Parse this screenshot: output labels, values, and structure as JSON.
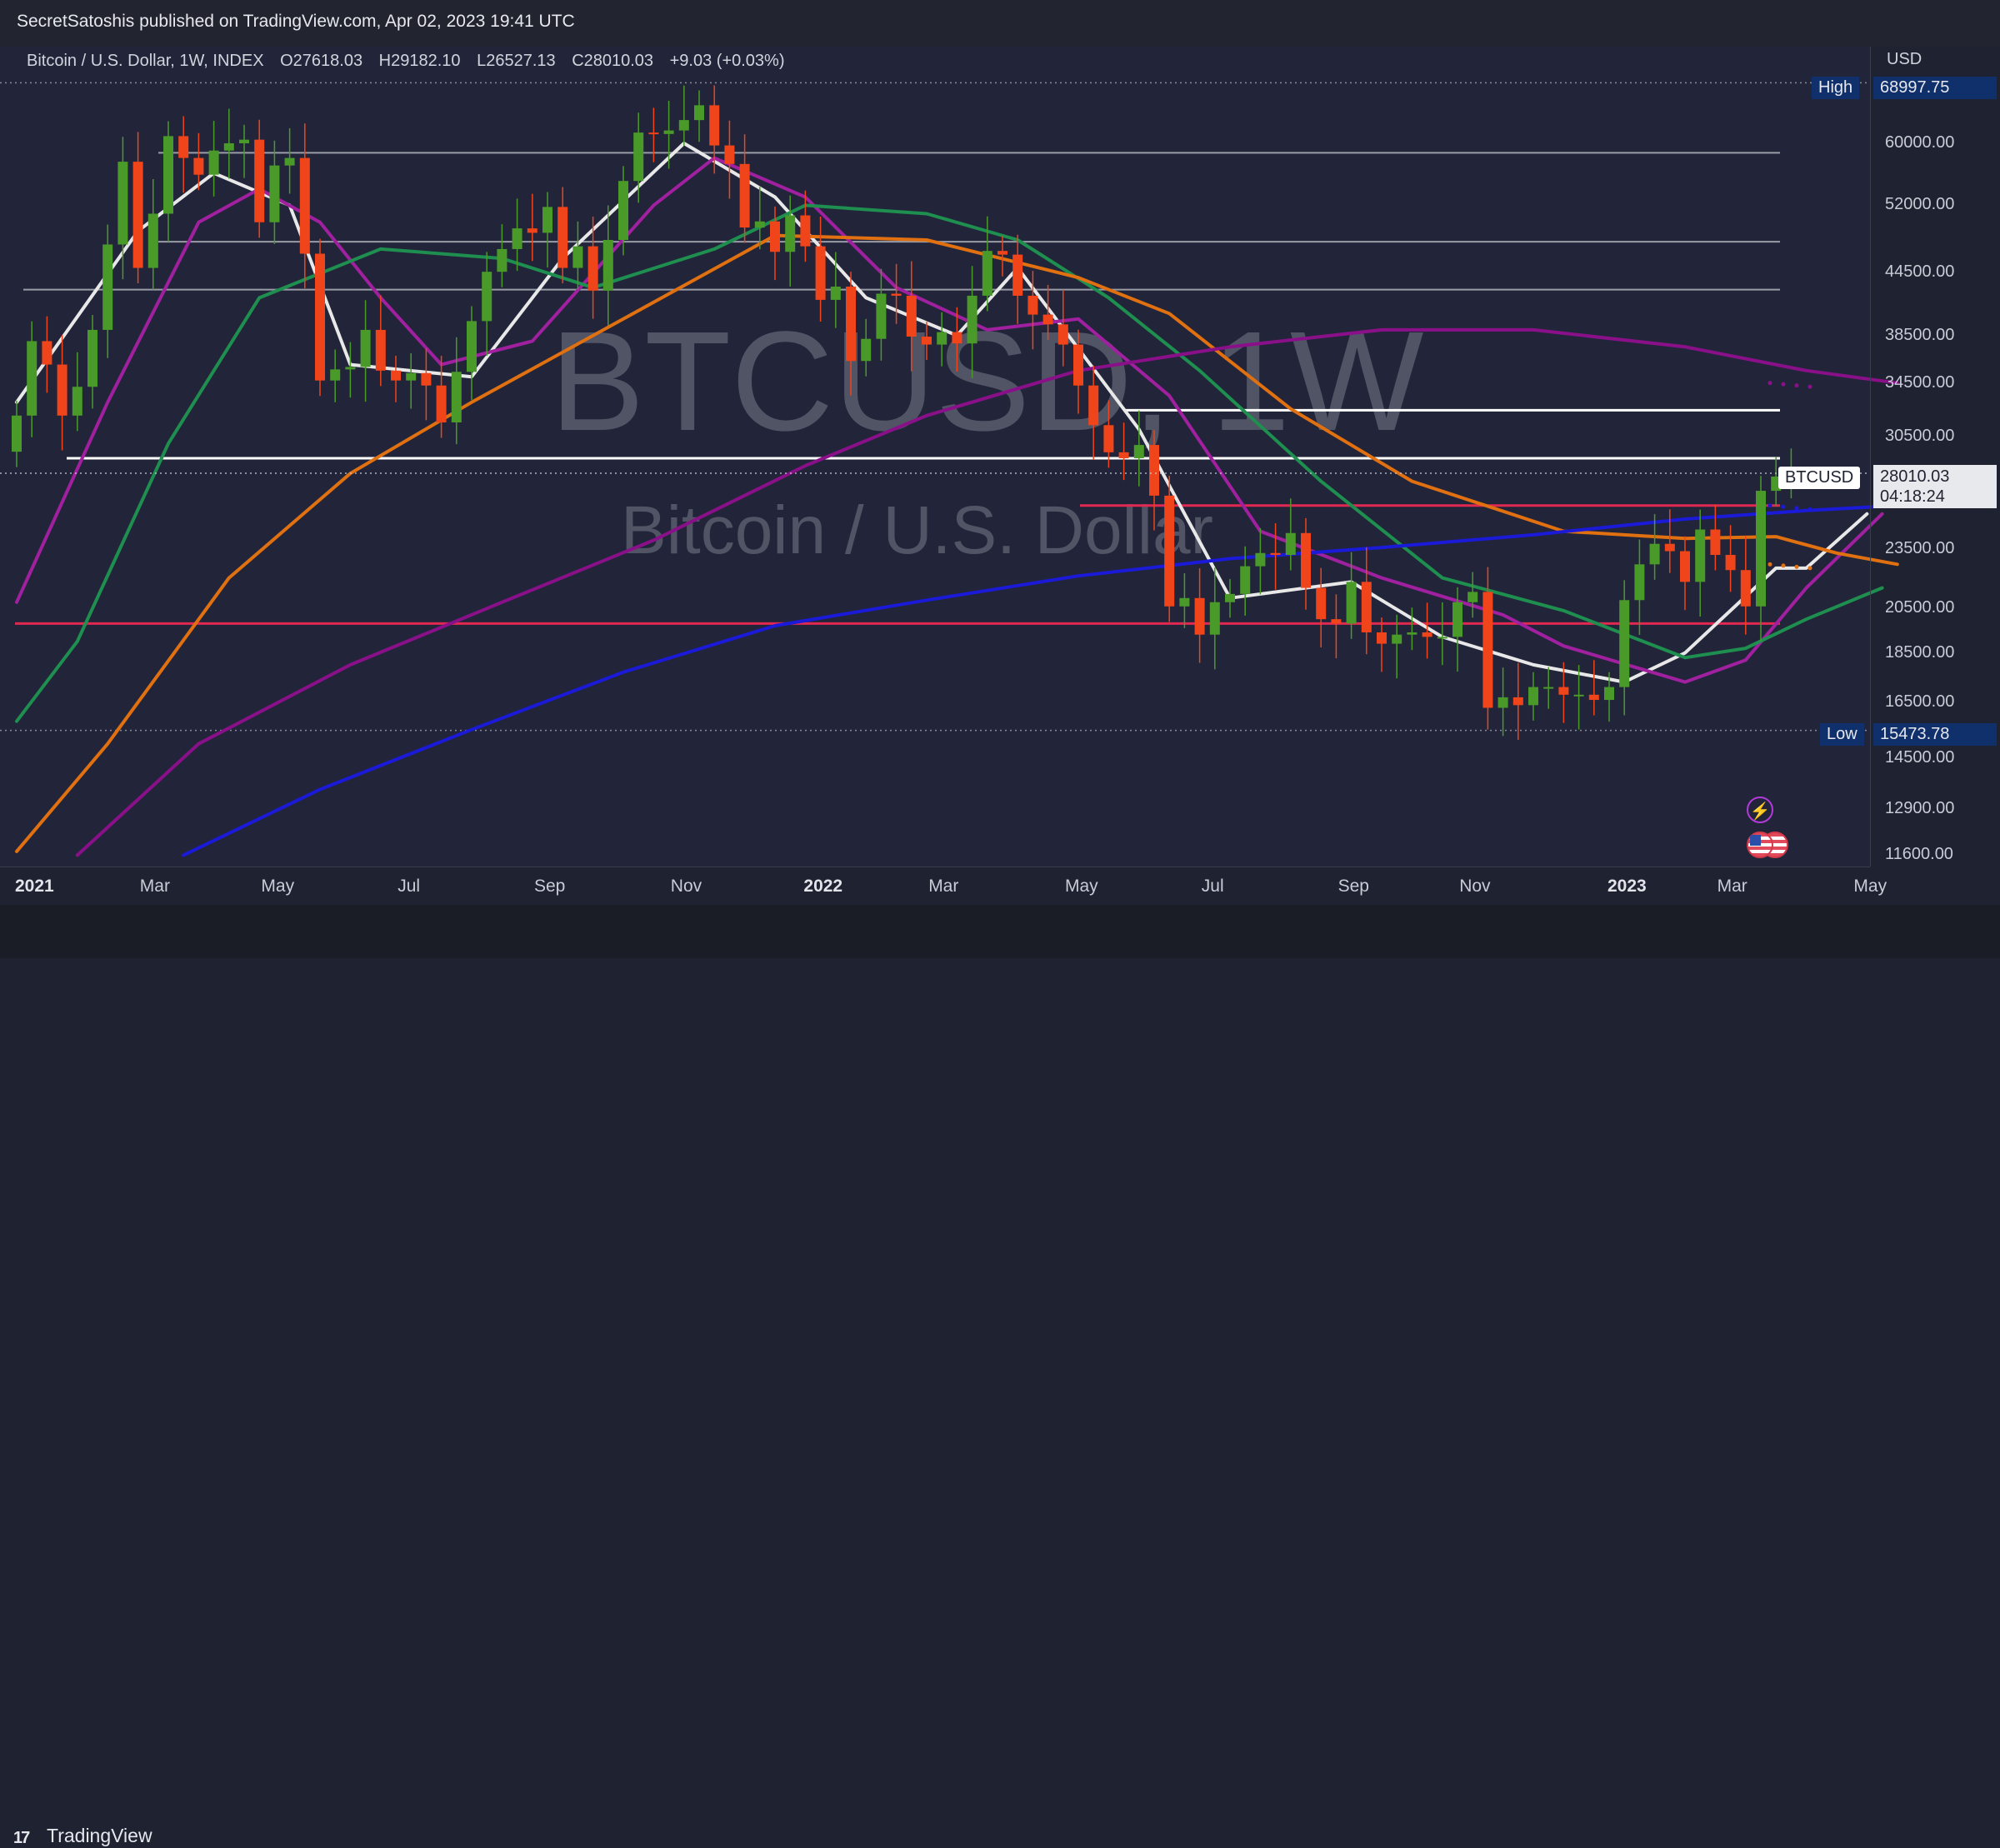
{
  "header": {
    "published": "SecretSatoshis published on TradingView.com, Apr 02, 2023 19:41 UTC"
  },
  "legend": {
    "symbol": "Bitcoin / U.S. Dollar, 1W, INDEX",
    "open": "O27618.03",
    "high": "H29182.10",
    "low": "L26527.13",
    "close": "C28010.03",
    "change": "+9.03 (+0.03%)"
  },
  "watermark": {
    "main": "BTCUSD, 1W",
    "sub": "Bitcoin / U.S. Dollar"
  },
  "price_axis": {
    "currency": "USD",
    "ticks": [
      "60000.00",
      "52000.00",
      "44500.00",
      "38500.00",
      "34500.00",
      "30500.00",
      "23500.00",
      "20500.00",
      "18500.00",
      "16500.00",
      "14500.00",
      "12900.00",
      "11600.00"
    ]
  },
  "time_axis": {
    "ticks": [
      {
        "label": "2021",
        "year": true
      },
      {
        "label": "Mar",
        "year": false
      },
      {
        "label": "May",
        "year": false
      },
      {
        "label": "Jul",
        "year": false
      },
      {
        "label": "Sep",
        "year": false
      },
      {
        "label": "Nov",
        "year": false
      },
      {
        "label": "2022",
        "year": true
      },
      {
        "label": "Mar",
        "year": false
      },
      {
        "label": "May",
        "year": false
      },
      {
        "label": "Jul",
        "year": false
      },
      {
        "label": "Sep",
        "year": false
      },
      {
        "label": "Nov",
        "year": false
      },
      {
        "label": "2023",
        "year": true
      },
      {
        "label": "Mar",
        "year": false
      },
      {
        "label": "May",
        "year": false
      }
    ]
  },
  "markers": {
    "high_label": "High",
    "high_value": "68997.75",
    "low_label": "Low",
    "low_value": "15473.78",
    "symbol_label": "BTCUSD",
    "last_price": "28010.03",
    "countdown": "04:18:24"
  },
  "footer": {
    "brand": "TradingView"
  },
  "colors": {
    "up": "#4a9a2a",
    "down": "#f0441a",
    "ma_fast": "#e8e8e8",
    "ma_purple": "#a020a0",
    "ma_green": "#1e8f4e",
    "ma_orange": "#e07010",
    "ma_magenta": "#8a108a",
    "ma_blue": "#1a1ad8",
    "resistance": "#ffffff",
    "support": "#e02850",
    "level": "#9a9ca6"
  },
  "chart_data": {
    "type": "candlestick",
    "title": "Bitcoin / U.S. Dollar, 1W, INDEX",
    "ylabel": "USD",
    "yscale": "log",
    "ylim": [
      11300,
      73000
    ],
    "x_range": [
      "2020-12-28",
      "2023-05-08"
    ],
    "high": 68997.75,
    "low": 15473.78,
    "last": 28010.03,
    "horizontal_levels": [
      {
        "price": 58700,
        "color": "level"
      },
      {
        "price": 47800,
        "color": "level"
      },
      {
        "price": 42800,
        "color": "level"
      },
      {
        "price": 32400,
        "color": "resistance"
      },
      {
        "price": 29000,
        "color": "resistance"
      },
      {
        "price": 26000,
        "color": "support"
      },
      {
        "price": 19800,
        "color": "support"
      }
    ],
    "weekly_closes": [
      {
        "date": "2020-12-28",
        "close": 32000
      },
      {
        "date": "2021-01-04",
        "close": 38000
      },
      {
        "date": "2021-01-11",
        "close": 36000
      },
      {
        "date": "2021-01-18",
        "close": 32000
      },
      {
        "date": "2021-01-25",
        "close": 34200
      },
      {
        "date": "2021-02-01",
        "close": 39000
      },
      {
        "date": "2021-02-08",
        "close": 47500
      },
      {
        "date": "2021-02-15",
        "close": 57500
      },
      {
        "date": "2021-02-22",
        "close": 45000
      },
      {
        "date": "2021-03-01",
        "close": 51000
      },
      {
        "date": "2021-03-08",
        "close": 61000
      },
      {
        "date": "2021-03-15",
        "close": 58000
      },
      {
        "date": "2021-03-22",
        "close": 55800
      },
      {
        "date": "2021-03-29",
        "close": 59000
      },
      {
        "date": "2021-04-05",
        "close": 60000
      },
      {
        "date": "2021-04-12",
        "close": 60500
      },
      {
        "date": "2021-04-19",
        "close": 50000
      },
      {
        "date": "2021-04-26",
        "close": 57000
      },
      {
        "date": "2021-05-03",
        "close": 58000
      },
      {
        "date": "2021-05-10",
        "close": 46500
      },
      {
        "date": "2021-05-17",
        "close": 34700
      },
      {
        "date": "2021-05-24",
        "close": 35600
      },
      {
        "date": "2021-05-31",
        "close": 35800
      },
      {
        "date": "2021-06-07",
        "close": 39000
      },
      {
        "date": "2021-06-14",
        "close": 35500
      },
      {
        "date": "2021-06-21",
        "close": 34700
      },
      {
        "date": "2021-06-28",
        "close": 35300
      },
      {
        "date": "2021-07-05",
        "close": 34300
      },
      {
        "date": "2021-07-12",
        "close": 31500
      },
      {
        "date": "2021-07-19",
        "close": 35400
      },
      {
        "date": "2021-07-26",
        "close": 39800
      },
      {
        "date": "2021-08-02",
        "close": 44600
      },
      {
        "date": "2021-08-09",
        "close": 47000
      },
      {
        "date": "2021-08-16",
        "close": 49300
      },
      {
        "date": "2021-08-23",
        "close": 48800
      },
      {
        "date": "2021-08-30",
        "close": 51800
      },
      {
        "date": "2021-09-06",
        "close": 45000
      },
      {
        "date": "2021-09-13",
        "close": 47300
      },
      {
        "date": "2021-09-20",
        "close": 42700
      },
      {
        "date": "2021-09-27",
        "close": 48000
      },
      {
        "date": "2021-10-04",
        "close": 55000
      },
      {
        "date": "2021-10-11",
        "close": 61500
      },
      {
        "date": "2021-10-18",
        "close": 61300
      },
      {
        "date": "2021-10-25",
        "close": 61800
      },
      {
        "date": "2021-11-01",
        "close": 63300
      },
      {
        "date": "2021-11-08",
        "close": 65500
      },
      {
        "date": "2021-11-15",
        "close": 59700
      },
      {
        "date": "2021-11-22",
        "close": 57200
      },
      {
        "date": "2021-11-29",
        "close": 49400
      },
      {
        "date": "2021-12-06",
        "close": 50100
      },
      {
        "date": "2021-12-13",
        "close": 46700
      },
      {
        "date": "2021-12-20",
        "close": 50800
      },
      {
        "date": "2021-12-27",
        "close": 47300
      },
      {
        "date": "2022-01-03",
        "close": 41800
      },
      {
        "date": "2022-01-10",
        "close": 43100
      },
      {
        "date": "2022-01-17",
        "close": 36300
      },
      {
        "date": "2022-01-24",
        "close": 38200
      },
      {
        "date": "2022-01-31",
        "close": 42400
      },
      {
        "date": "2022-02-07",
        "close": 42200
      },
      {
        "date": "2022-02-14",
        "close": 38400
      },
      {
        "date": "2022-02-21",
        "close": 37700
      },
      {
        "date": "2022-02-28",
        "close": 38800
      },
      {
        "date": "2022-03-07",
        "close": 37800
      },
      {
        "date": "2022-03-14",
        "close": 42200
      },
      {
        "date": "2022-03-21",
        "close": 46800
      },
      {
        "date": "2022-03-28",
        "close": 46400
      },
      {
        "date": "2022-04-04",
        "close": 42200
      },
      {
        "date": "2022-04-11",
        "close": 40400
      },
      {
        "date": "2022-04-18",
        "close": 39500
      },
      {
        "date": "2022-04-25",
        "close": 37700
      },
      {
        "date": "2022-05-02",
        "close": 34300
      },
      {
        "date": "2022-05-09",
        "close": 31300
      },
      {
        "date": "2022-05-16",
        "close": 29400
      },
      {
        "date": "2022-05-23",
        "close": 29000
      },
      {
        "date": "2022-05-30",
        "close": 29900
      },
      {
        "date": "2022-06-06",
        "close": 26600
      },
      {
        "date": "2022-06-13",
        "close": 20600
      },
      {
        "date": "2022-06-20",
        "close": 21000
      },
      {
        "date": "2022-06-27",
        "close": 19300
      },
      {
        "date": "2022-07-04",
        "close": 20800
      },
      {
        "date": "2022-07-11",
        "close": 21200
      },
      {
        "date": "2022-07-18",
        "close": 22600
      },
      {
        "date": "2022-07-25",
        "close": 23300
      },
      {
        "date": "2022-08-01",
        "close": 23200
      },
      {
        "date": "2022-08-08",
        "close": 24400
      },
      {
        "date": "2022-08-15",
        "close": 21500
      },
      {
        "date": "2022-08-22",
        "close": 20000
      },
      {
        "date": "2022-08-29",
        "close": 19800
      },
      {
        "date": "2022-09-05",
        "close": 21800
      },
      {
        "date": "2022-09-12",
        "close": 19400
      },
      {
        "date": "2022-09-19",
        "close": 18900
      },
      {
        "date": "2022-09-26",
        "close": 19300
      },
      {
        "date": "2022-10-03",
        "close": 19400
      },
      {
        "date": "2022-10-10",
        "close": 19200
      },
      {
        "date": "2022-10-17",
        "close": 19200
      },
      {
        "date": "2022-10-24",
        "close": 20800
      },
      {
        "date": "2022-10-31",
        "close": 21300
      },
      {
        "date": "2022-11-07",
        "close": 16300
      },
      {
        "date": "2022-11-14",
        "close": 16700
      },
      {
        "date": "2022-11-21",
        "close": 16400
      },
      {
        "date": "2022-11-28",
        "close": 17100
      },
      {
        "date": "2022-12-05",
        "close": 17100
      },
      {
        "date": "2022-12-12",
        "close": 16800
      },
      {
        "date": "2022-12-19",
        "close": 16800
      },
      {
        "date": "2022-12-26",
        "close": 16600
      },
      {
        "date": "2023-01-02",
        "close": 17100
      },
      {
        "date": "2023-01-09",
        "close": 20900
      },
      {
        "date": "2023-01-16",
        "close": 22700
      },
      {
        "date": "2023-01-23",
        "close": 23800
      },
      {
        "date": "2023-01-30",
        "close": 23400
      },
      {
        "date": "2023-02-06",
        "close": 21800
      },
      {
        "date": "2023-02-13",
        "close": 24600
      },
      {
        "date": "2023-02-20",
        "close": 23200
      },
      {
        "date": "2023-02-27",
        "close": 22400
      },
      {
        "date": "2023-03-06",
        "close": 20600
      },
      {
        "date": "2023-03-13",
        "close": 26900
      },
      {
        "date": "2023-03-20",
        "close": 27800
      },
      {
        "date": "2023-03-27",
        "close": 28010.03
      }
    ],
    "moving_averages": [
      {
        "color": "ma_fast",
        "points": [
          [
            0,
            33000
          ],
          [
            8,
            49000
          ],
          [
            13,
            56000
          ],
          [
            18,
            52000
          ],
          [
            22,
            36000
          ],
          [
            30,
            35000
          ],
          [
            36,
            46000
          ],
          [
            44,
            60000
          ],
          [
            50,
            53000
          ],
          [
            56,
            42000
          ],
          [
            62,
            38500
          ],
          [
            66,
            45000
          ],
          [
            74,
            31000
          ],
          [
            80,
            21000
          ],
          [
            88,
            21800
          ],
          [
            94,
            19200
          ],
          [
            100,
            18000
          ],
          [
            106,
            17300
          ],
          [
            110,
            18500
          ],
          [
            116,
            22500
          ],
          [
            118,
            22500
          ],
          [
            122,
            25500
          ]
        ]
      },
      {
        "color": "ma_purple",
        "points": [
          [
            0,
            20800
          ],
          [
            6,
            33000
          ],
          [
            12,
            50000
          ],
          [
            16,
            54000
          ],
          [
            20,
            50000
          ],
          [
            24,
            42000
          ],
          [
            28,
            36000
          ],
          [
            34,
            38000
          ],
          [
            42,
            52000
          ],
          [
            46,
            58000
          ],
          [
            52,
            53000
          ],
          [
            58,
            43000
          ],
          [
            64,
            39000
          ],
          [
            70,
            40000
          ],
          [
            76,
            33500
          ],
          [
            82,
            24500
          ],
          [
            90,
            22000
          ],
          [
            98,
            20200
          ],
          [
            102,
            18800
          ],
          [
            110,
            17300
          ],
          [
            114,
            18200
          ],
          [
            118,
            21500
          ],
          [
            123,
            25500
          ]
        ]
      },
      {
        "color": "ma_green",
        "points": [
          [
            0,
            15800
          ],
          [
            4,
            19000
          ],
          [
            10,
            30000
          ],
          [
            16,
            42000
          ],
          [
            24,
            47000
          ],
          [
            32,
            46000
          ],
          [
            38,
            43000
          ],
          [
            46,
            47000
          ],
          [
            52,
            52000
          ],
          [
            60,
            51000
          ],
          [
            66,
            48000
          ],
          [
            72,
            42000
          ],
          [
            78,
            35500
          ],
          [
            86,
            27500
          ],
          [
            94,
            22000
          ],
          [
            102,
            20400
          ],
          [
            110,
            18300
          ],
          [
            114,
            18700
          ],
          [
            118,
            20000
          ],
          [
            123,
            21500
          ]
        ]
      },
      {
        "color": "ma_orange",
        "points": [
          [
            0,
            11700
          ],
          [
            6,
            15000
          ],
          [
            14,
            22000
          ],
          [
            22,
            28000
          ],
          [
            30,
            33000
          ],
          [
            40,
            40000
          ],
          [
            50,
            48500
          ],
          [
            60,
            48000
          ],
          [
            70,
            44000
          ],
          [
            76,
            40500
          ],
          [
            84,
            32500
          ],
          [
            92,
            27500
          ],
          [
            102,
            24500
          ],
          [
            110,
            24100
          ],
          [
            116,
            24200
          ],
          [
            120,
            23300
          ],
          [
            124,
            22700
          ]
        ]
      },
      {
        "color": "ma_magenta",
        "points": [
          [
            4,
            11600
          ],
          [
            12,
            15000
          ],
          [
            22,
            18000
          ],
          [
            32,
            20800
          ],
          [
            42,
            24000
          ],
          [
            52,
            28500
          ],
          [
            60,
            32000
          ],
          [
            70,
            35500
          ],
          [
            80,
            37500
          ],
          [
            90,
            39000
          ],
          [
            100,
            39000
          ],
          [
            110,
            37500
          ],
          [
            118,
            35500
          ],
          [
            124,
            34500
          ]
        ]
      },
      {
        "color": "ma_blue",
        "points": [
          [
            11,
            11600
          ],
          [
            20,
            13500
          ],
          [
            30,
            15500
          ],
          [
            40,
            17700
          ],
          [
            50,
            19700
          ],
          [
            60,
            20900
          ],
          [
            70,
            22100
          ],
          [
            80,
            23000
          ],
          [
            90,
            23600
          ],
          [
            100,
            24300
          ],
          [
            110,
            25200
          ],
          [
            118,
            25700
          ],
          [
            124,
            26000
          ]
        ]
      }
    ]
  }
}
